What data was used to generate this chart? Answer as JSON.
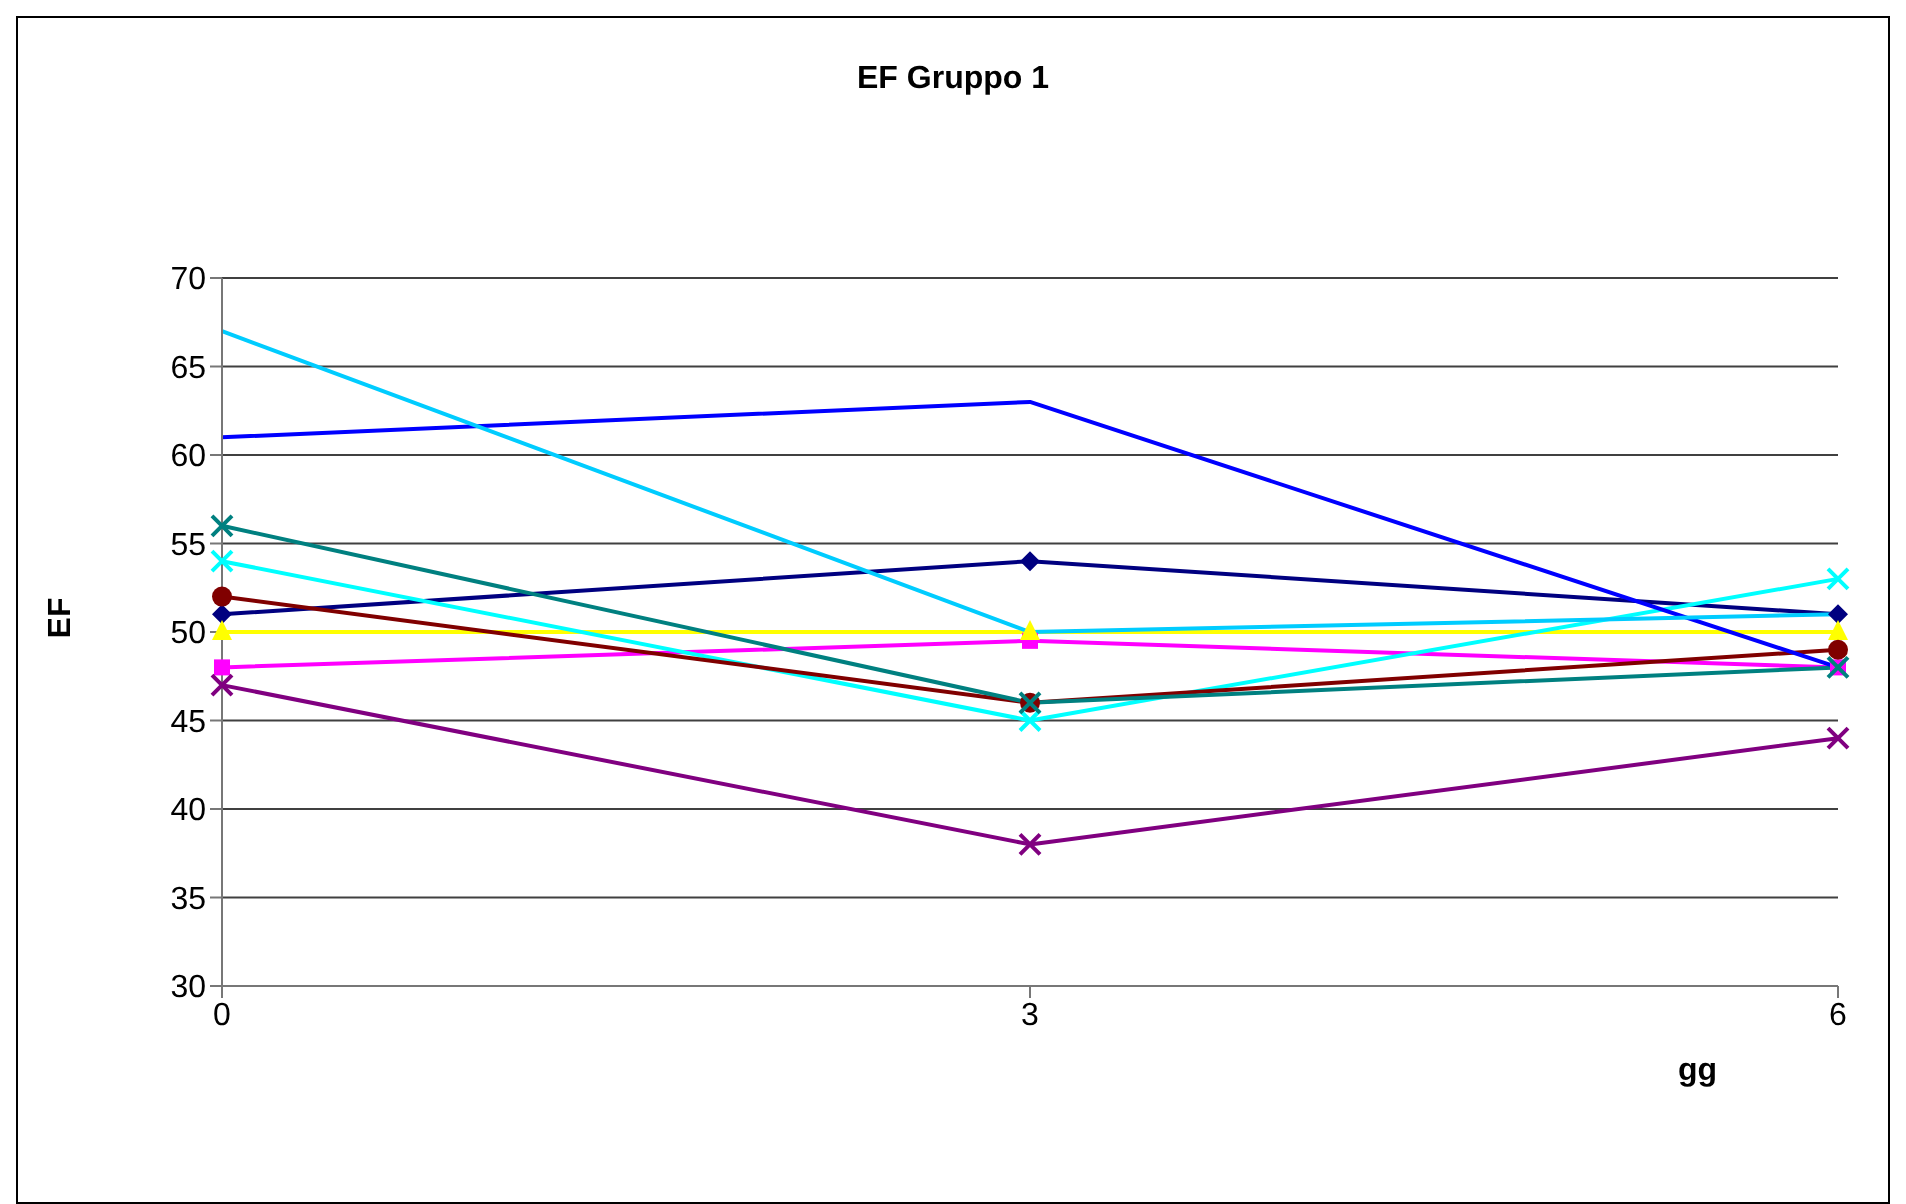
{
  "chart_data": {
    "type": "line",
    "title": "EF Gruppo 1",
    "xlabel": "gg",
    "ylabel": "EF",
    "x": [
      0,
      3,
      6
    ],
    "xlim": [
      0,
      6
    ],
    "xticks": [
      0,
      3,
      6
    ],
    "ylim": [
      30,
      70
    ],
    "yticks": [
      30,
      35,
      40,
      45,
      50,
      55,
      60,
      65,
      70
    ],
    "grid": "y",
    "legend": false,
    "line_style": "solid",
    "series": [
      {
        "color": "#000080",
        "marker": "diamond",
        "values": [
          51,
          54,
          51
        ]
      },
      {
        "color": "#ff00ff",
        "marker": "square",
        "values": [
          48,
          49.5,
          48
        ]
      },
      {
        "color": "#ffff00",
        "marker": "triangle",
        "values": [
          50,
          50,
          50
        ]
      },
      {
        "color": "#00ffff",
        "marker": "cross",
        "values": [
          54,
          45,
          53
        ]
      },
      {
        "color": "#800080",
        "marker": "cross",
        "values": [
          47,
          38,
          44
        ]
      },
      {
        "color": "#800000",
        "marker": "circle",
        "values": [
          52,
          46,
          49
        ]
      },
      {
        "color": "#008080",
        "marker": "cross",
        "values": [
          56,
          46,
          48
        ]
      },
      {
        "color": "#0000ff",
        "marker": "none",
        "values": [
          61,
          63,
          48
        ]
      },
      {
        "color": "#00ccff",
        "marker": "none",
        "values": [
          67,
          50,
          51
        ]
      }
    ]
  }
}
